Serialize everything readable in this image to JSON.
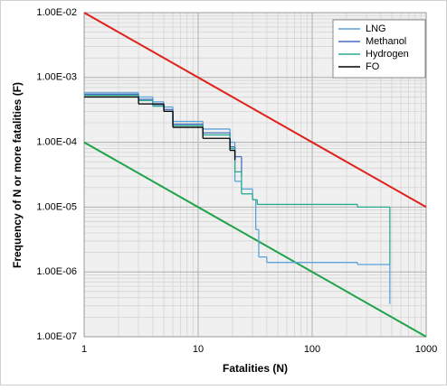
{
  "chart_data": {
    "type": "line",
    "xscale": "log",
    "yscale": "log",
    "grid": true,
    "x_label": "Fatalities (N)",
    "y_label": "Frequency of N or more fatalities (F)",
    "xlim": [
      1,
      1000
    ],
    "ylim": [
      1e-07,
      0.01
    ],
    "xticks": [
      1,
      10,
      100,
      1000
    ],
    "yticks": [
      {
        "value": 1e-07,
        "label": "1.00E-07"
      },
      {
        "value": 1e-06,
        "label": "1.00E-06"
      },
      {
        "value": 1e-05,
        "label": "1.00E-05"
      },
      {
        "value": 0.0001,
        "label": "1.00E-04"
      },
      {
        "value": 0.001,
        "label": "1.00E-03"
      },
      {
        "value": 0.01,
        "label": "1.00E-02"
      }
    ],
    "series": [
      {
        "color": "#e0201b",
        "style": "line",
        "x": [
          1,
          1000
        ],
        "values": [
          0.01,
          1e-05
        ]
      },
      {
        "color": "#1fa34a",
        "style": "line",
        "x": [
          1,
          1000
        ],
        "values": [
          0.0001,
          1e-07
        ]
      },
      {
        "name": "LNG",
        "color": "#5ba3d9",
        "style": "step",
        "x": [
          1,
          3,
          4,
          5,
          6,
          11,
          19,
          21,
          24,
          30,
          32,
          34,
          40,
          250,
          480
        ],
        "values": [
          0.00058,
          0.0005,
          0.00042,
          0.00035,
          0.00021,
          0.00016,
          0.0001,
          2.5e-05,
          1.9e-05,
          1.3e-05,
          4.5e-06,
          1.7e-06,
          1.4e-06,
          1.3e-06,
          3.2e-07
        ]
      },
      {
        "name": "Methanol",
        "color": "#4a6fc0",
        "style": "step",
        "x": [
          1,
          3,
          4,
          5,
          6,
          11,
          19,
          21,
          24
        ],
        "values": [
          0.00055,
          0.00046,
          0.00038,
          0.00032,
          0.00019,
          0.00014,
          8.5e-05,
          6e-05,
          3e-05
        ]
      },
      {
        "name": "Hydrogen",
        "color": "#2bab8f",
        "style": "step",
        "x": [
          1,
          3,
          4,
          5,
          6,
          11,
          19,
          21,
          24,
          30,
          33,
          250,
          480
        ],
        "values": [
          0.00053,
          0.00044,
          0.00036,
          0.0003,
          0.00018,
          0.00013,
          8e-05,
          3.5e-05,
          1.6e-05,
          1.3e-05,
          1.1e-05,
          1e-05,
          1.3e-06
        ]
      },
      {
        "name": "FO",
        "color": "#000000",
        "style": "step",
        "x": [
          1,
          3,
          5,
          6,
          11,
          19,
          21
        ],
        "values": [
          0.0005,
          0.00039,
          0.0003,
          0.00017,
          0.000115,
          7.5e-05,
          5.3e-05
        ]
      }
    ]
  }
}
